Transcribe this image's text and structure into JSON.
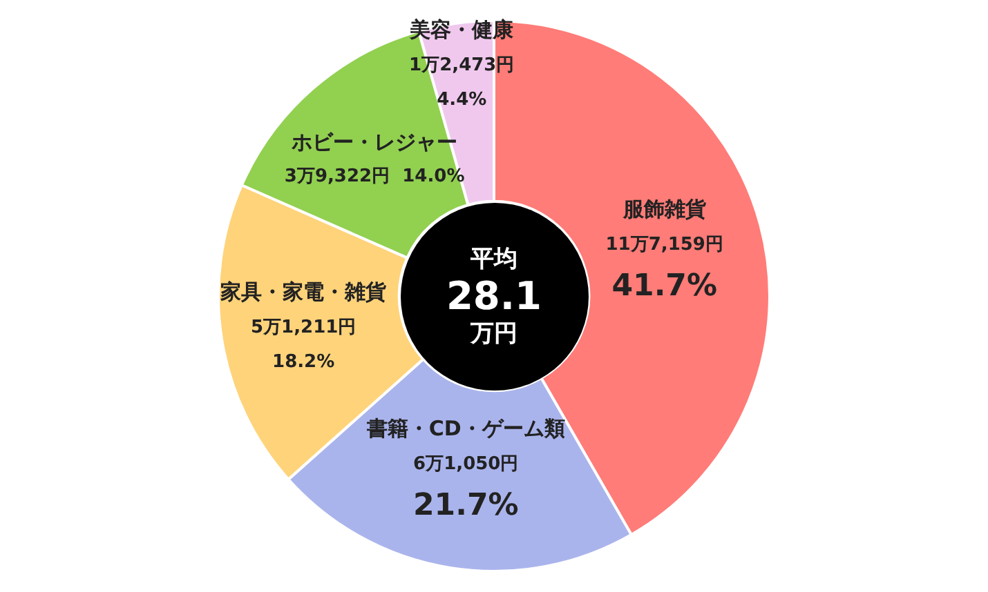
{
  "chart_data": {
    "type": "donut",
    "categories": [
      "服飾雑貨",
      "書籍・CD・ゲーム類",
      "家具・家電・雑貨",
      "ホビー・レジャー",
      "美容・健康"
    ],
    "values": [
      41.7,
      21.7,
      18.2,
      14.0,
      4.4
    ],
    "value_labels": [
      "11万7,159円\n41.7%",
      "6万1,050円\n21.7%",
      "5万1,211円\n18.2%",
      "3万9,322円  14.0%",
      "1万2,473円\n4.4%"
    ],
    "colors": [
      "#ff7c78",
      "#aab4ec",
      "#ffd37a",
      "#92d050",
      "#f0c8ee"
    ],
    "annotations": [
      "平均",
      "28.1",
      "万円"
    ],
    "legend": false
  }
}
